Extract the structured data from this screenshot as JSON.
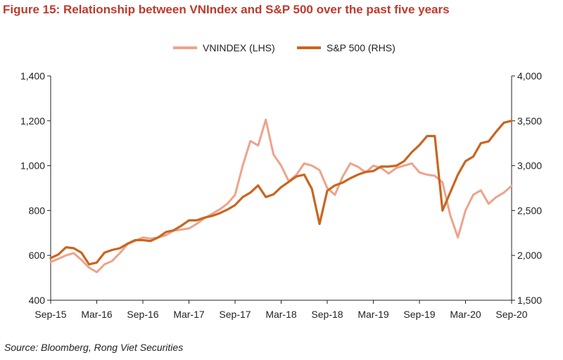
{
  "title": "Figure 15: Relationship between VNIndex and S&P 500 over the past five years",
  "source": "Source: Bloomberg, Rong Viet Securities",
  "colors": {
    "title": "#c0392b",
    "vnindex": "#eea38a",
    "sp500": "#c9651f",
    "axis": "#222222"
  },
  "chart_data": {
    "type": "line",
    "title": "Figure 15: Relationship between VNIndex and S&P 500 over the past five years",
    "xlabel": "",
    "ylabel_left": "",
    "ylabel_right": "",
    "x_ticks": [
      "Sep-15",
      "Mar-16",
      "Sep-16",
      "Mar-17",
      "Sep-17",
      "Mar-18",
      "Sep-18",
      "Mar-19",
      "Sep-19",
      "Mar-20",
      "Sep-20"
    ],
    "x_range": [
      "Sep-15",
      "Sep-20"
    ],
    "y_left": {
      "min": 400,
      "max": 1400,
      "ticks": [
        "400",
        "600",
        "800",
        "1,000",
        "1,200",
        "1,400"
      ]
    },
    "y_right": {
      "min": 1500,
      "max": 4000,
      "ticks": [
        "1,500",
        "2,000",
        "2,500",
        "3,000",
        "3,500",
        "4,000"
      ]
    },
    "legend_position": "top-center",
    "grid": false,
    "series": [
      {
        "name": "VNINDEX (LHS)",
        "axis": "left",
        "color": "#eea38a",
        "x": [
          0,
          1,
          2,
          3,
          4,
          5,
          6,
          7,
          8,
          9,
          10,
          11,
          12,
          13,
          14,
          15,
          16,
          17,
          18,
          19,
          20,
          21,
          22,
          23,
          24,
          25,
          26,
          27,
          28,
          29,
          30,
          31,
          32,
          33,
          34,
          35,
          36,
          37,
          38,
          39,
          40,
          41,
          42,
          43,
          44,
          45,
          46,
          47,
          48,
          49,
          50,
          51,
          52,
          53,
          54,
          55,
          56,
          57,
          58,
          59,
          60
        ],
        "values": [
          570,
          585,
          600,
          610,
          580,
          545,
          525,
          560,
          575,
          610,
          650,
          665,
          680,
          675,
          680,
          690,
          710,
          715,
          720,
          740,
          765,
          785,
          805,
          830,
          870,
          1000,
          1110,
          1090,
          1205,
          1050,
          1000,
          930,
          960,
          1010,
          1000,
          980,
          900,
          870,
          950,
          1010,
          995,
          970,
          1000,
          990,
          965,
          990,
          1000,
          1010,
          970,
          960,
          955,
          925,
          780,
          680,
          800,
          870,
          890,
          830,
          860,
          880,
          910
        ]
      },
      {
        "name": "S&P 500 (RHS)",
        "axis": "right",
        "color": "#c9651f",
        "x": [
          0,
          1,
          2,
          3,
          4,
          5,
          6,
          7,
          8,
          9,
          10,
          11,
          12,
          13,
          14,
          15,
          16,
          17,
          18,
          19,
          20,
          21,
          22,
          23,
          24,
          25,
          26,
          27,
          28,
          29,
          30,
          31,
          32,
          33,
          34,
          35,
          36,
          37,
          38,
          39,
          40,
          41,
          42,
          43,
          44,
          45,
          46,
          47,
          48,
          49,
          50,
          51,
          52,
          53,
          54,
          55,
          56,
          57,
          58,
          59,
          60
        ],
        "values": [
          1970,
          2010,
          2090,
          2080,
          2030,
          1900,
          1920,
          2030,
          2060,
          2080,
          2130,
          2170,
          2170,
          2160,
          2200,
          2260,
          2280,
          2330,
          2390,
          2390,
          2420,
          2440,
          2470,
          2510,
          2560,
          2650,
          2700,
          2780,
          2650,
          2680,
          2760,
          2820,
          2880,
          2900,
          2740,
          2350,
          2720,
          2780,
          2810,
          2860,
          2900,
          2930,
          2940,
          2990,
          2990,
          3000,
          3050,
          3150,
          3230,
          3330,
          3330,
          2500,
          2700,
          2900,
          3050,
          3100,
          3250,
          3270,
          3380,
          3480,
          3500
        ]
      }
    ]
  }
}
